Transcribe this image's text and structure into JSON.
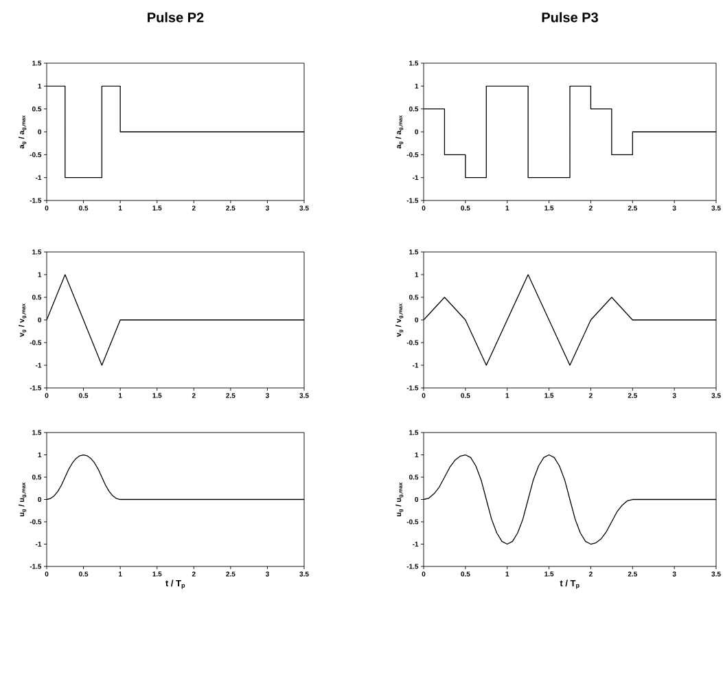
{
  "chart_data": [
    {
      "type": "step",
      "title": "Pulse P2",
      "ylabel": "a$_{g}$ / a$_{g,max}$",
      "color": "#000000",
      "x": [
        0,
        0.25,
        0.75,
        1,
        3.5
      ],
      "values": [
        1,
        -1,
        1,
        0,
        0
      ],
      "xlim": [
        0,
        3.5
      ],
      "xticks": [
        0,
        0.5,
        1,
        1.5,
        2,
        2.5,
        3,
        3.5
      ],
      "ylim": [
        -1.5,
        1.5
      ],
      "yticks": [
        -1.5,
        -1,
        -0.5,
        0,
        0.5,
        1,
        1.5
      ]
    },
    {
      "type": "step",
      "title": "Pulse P3",
      "ylabel": "a$_{g}$ / a$_{g,max}$",
      "color": "#000000",
      "x": [
        0,
        0.25,
        0.5,
        0.75,
        1.25,
        1.75,
        2,
        2.25,
        2.5,
        3.5
      ],
      "values": [
        0.5,
        -0.5,
        -1,
        1,
        -1,
        1,
        0.5,
        -0.5,
        0,
        0
      ],
      "xlim": [
        0,
        3.5
      ],
      "xticks": [
        0,
        0.5,
        1,
        1.5,
        2,
        2.5,
        3,
        3.5
      ],
      "ylim": [
        -1.5,
        1.5
      ],
      "yticks": [
        -1.5,
        -1,
        -0.5,
        0,
        0.5,
        1,
        1.5
      ]
    },
    {
      "type": "line",
      "ylabel": "v$_{g}$ / v$_{g,max}$",
      "color": "#000000",
      "x": [
        0,
        0.25,
        0.75,
        1,
        3.5
      ],
      "values": [
        0,
        1,
        -1,
        0,
        0
      ],
      "xlim": [
        0,
        3.5
      ],
      "xticks": [
        0,
        0.5,
        1,
        1.5,
        2,
        2.5,
        3,
        3.5
      ],
      "ylim": [
        -1.5,
        1.5
      ],
      "yticks": [
        -1.5,
        -1,
        -0.5,
        0,
        0.5,
        1,
        1.5
      ]
    },
    {
      "type": "line",
      "ylabel": "v$_{g}$ / v$_{g,max}$",
      "color": "#000000",
      "x": [
        0,
        0.25,
        0.5,
        0.75,
        1.25,
        1.75,
        2,
        2.25,
        2.5,
        3.5
      ],
      "values": [
        0,
        0.5,
        0,
        -1,
        1,
        -1,
        0,
        0.5,
        0,
        0
      ],
      "xlim": [
        0,
        3.5
      ],
      "xticks": [
        0,
        0.5,
        1,
        1.5,
        2,
        2.5,
        3,
        3.5
      ],
      "ylim": [
        -1.5,
        1.5
      ],
      "yticks": [
        -1.5,
        -1,
        -0.5,
        0,
        0.5,
        1,
        1.5
      ]
    },
    {
      "type": "line",
      "ylabel": "u$_{g}$ / u$_{g,max}$",
      "xlabel": "t / T$_{p}$",
      "color": "#000000",
      "x": [
        0,
        0.05,
        0.1,
        0.15,
        0.2,
        0.25,
        0.3,
        0.35,
        0.4,
        0.45,
        0.5,
        0.55,
        0.6,
        0.65,
        0.7,
        0.75,
        0.8,
        0.85,
        0.9,
        0.95,
        1,
        3.5
      ],
      "values": [
        0,
        0.02,
        0.08,
        0.18,
        0.32,
        0.5,
        0.68,
        0.82,
        0.92,
        0.98,
        1,
        0.98,
        0.92,
        0.82,
        0.68,
        0.5,
        0.32,
        0.18,
        0.08,
        0.02,
        0,
        0
      ],
      "xlim": [
        0,
        3.5
      ],
      "xticks": [
        0,
        0.5,
        1,
        1.5,
        2,
        2.5,
        3,
        3.5
      ],
      "ylim": [
        -1.5,
        1.5
      ],
      "yticks": [
        -1.5,
        -1,
        -0.5,
        0,
        0.5,
        1,
        1.5
      ]
    },
    {
      "type": "line",
      "ylabel": "u$_{g}$ / u$_{g,max}$",
      "xlabel": "t / T$_{p}$",
      "color": "#000000",
      "x": [
        0,
        0.0625,
        0.125,
        0.1875,
        0.25,
        0.3125,
        0.375,
        0.4375,
        0.5,
        0.5625,
        0.625,
        0.6875,
        0.75,
        0.8125,
        0.875,
        0.9375,
        1,
        1.0625,
        1.125,
        1.1875,
        1.25,
        1.3125,
        1.375,
        1.4375,
        1.5,
        1.5625,
        1.625,
        1.6875,
        1.75,
        1.8125,
        1.875,
        1.9375,
        2,
        2.0625,
        2.125,
        2.1875,
        2.25,
        2.3125,
        2.375,
        2.4375,
        2.5,
        3.5
      ],
      "values": [
        0,
        0.03,
        0.13,
        0.28,
        0.5,
        0.72,
        0.88,
        0.97,
        1,
        0.94,
        0.75,
        0.44,
        0,
        -0.44,
        -0.75,
        -0.94,
        -1,
        -0.94,
        -0.75,
        -0.44,
        0,
        0.44,
        0.75,
        0.94,
        1,
        0.94,
        0.75,
        0.44,
        0,
        -0.44,
        -0.75,
        -0.94,
        -1,
        -0.97,
        -0.88,
        -0.72,
        -0.5,
        -0.28,
        -0.13,
        -0.03,
        0,
        0
      ],
      "xlim": [
        0,
        3.5
      ],
      "xticks": [
        0,
        0.5,
        1,
        1.5,
        2,
        2.5,
        3,
        3.5
      ],
      "ylim": [
        -1.5,
        1.5
      ],
      "yticks": [
        -1.5,
        -1,
        -0.5,
        0,
        0.5,
        1,
        1.5
      ]
    }
  ]
}
